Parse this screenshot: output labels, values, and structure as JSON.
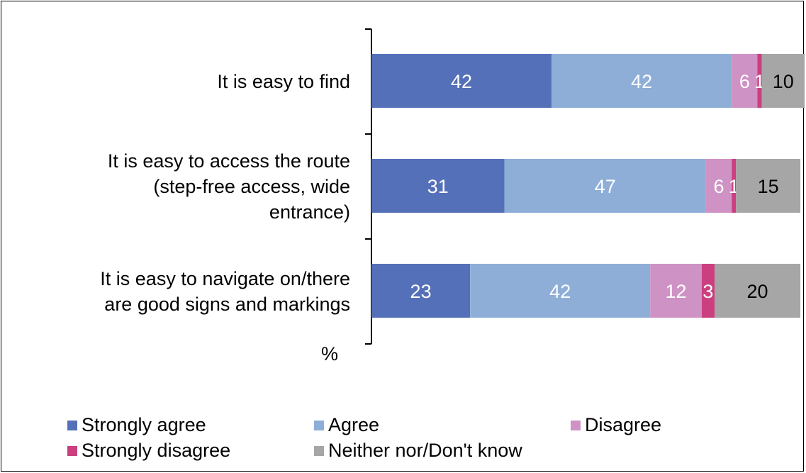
{
  "chart_data": {
    "type": "bar",
    "orientation": "horizontal",
    "stacked": true,
    "categories": [
      "It is easy to find",
      "It is easy to access the route (step-free access, wide entrance)",
      "It is easy to navigate on/there are good signs and markings"
    ],
    "category_lines": [
      [
        "It is easy to find"
      ],
      [
        "It is easy to access the route",
        "(step-free access, wide",
        "entrance)"
      ],
      [
        "It is easy to navigate on/there",
        "are good signs and markings"
      ]
    ],
    "series": [
      {
        "name": "Strongly agree",
        "values": [
          42,
          31,
          23
        ],
        "color": "#5470b8",
        "label_color": "#ffffff"
      },
      {
        "name": "Agree",
        "values": [
          42,
          47,
          42
        ],
        "color": "#8eaed8",
        "label_color": "#ffffff"
      },
      {
        "name": "Disagree",
        "values": [
          6,
          6,
          12
        ],
        "color": "#cf92c4",
        "label_color": "#ffffff"
      },
      {
        "name": "Strongly disagree",
        "values": [
          1,
          1,
          3
        ],
        "color": "#cc3f7f",
        "label_color": "#ffffff"
      },
      {
        "name": "Neither nor/Don't know",
        "values": [
          10,
          15,
          20
        ],
        "color": "#a6a6a6",
        "label_color": "#000000"
      }
    ],
    "axis_unit_label": "%",
    "xlim": [
      0,
      100
    ],
    "grid": false,
    "legend_position": "bottom"
  }
}
